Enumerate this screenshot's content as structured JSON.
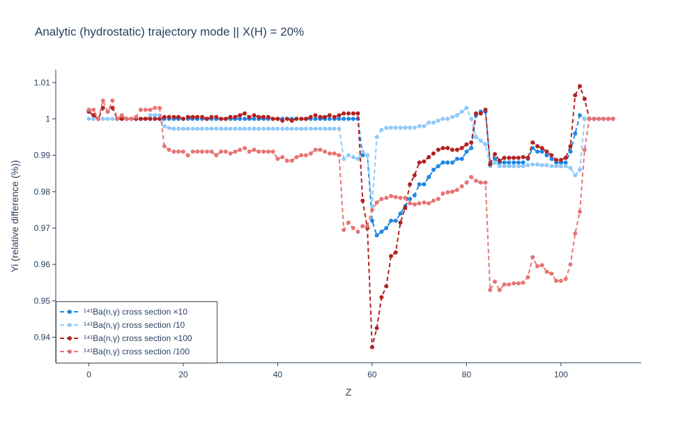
{
  "chart_data": {
    "type": "line",
    "title": "Analytic (hydrostatic) trajectory mode || X(H) = 20%",
    "xlabel": "Z",
    "ylabel": "Yi (relative difference (%))",
    "xlim": [
      -7,
      117
    ],
    "ylim": [
      0.933,
      1.0135
    ],
    "x_ticks": [
      0,
      20,
      40,
      60,
      80,
      100
    ],
    "y_ticks": [
      0.94,
      0.95,
      0.96,
      0.97,
      0.98,
      0.99,
      1,
      1.01
    ],
    "y_tick_labels": [
      "0.94",
      "0.95",
      "0.96",
      "0.97",
      "0.98",
      "0.99",
      "1",
      "1.01"
    ],
    "grid": false,
    "legend_position": "bottom-left",
    "x": [
      0,
      1,
      2,
      3,
      4,
      5,
      6,
      7,
      8,
      9,
      10,
      11,
      12,
      13,
      14,
      15,
      16,
      17,
      18,
      19,
      20,
      21,
      22,
      23,
      24,
      25,
      26,
      27,
      28,
      29,
      30,
      31,
      32,
      33,
      34,
      35,
      36,
      37,
      38,
      39,
      40,
      41,
      42,
      43,
      44,
      45,
      46,
      47,
      48,
      49,
      50,
      51,
      52,
      53,
      54,
      55,
      56,
      57,
      58,
      59,
      60,
      61,
      62,
      63,
      64,
      65,
      66,
      67,
      68,
      69,
      70,
      71,
      72,
      73,
      74,
      75,
      76,
      77,
      78,
      79,
      80,
      81,
      82,
      83,
      84,
      85,
      86,
      87,
      88,
      89,
      90,
      91,
      92,
      93,
      94,
      95,
      96,
      97,
      98,
      99,
      100,
      101,
      102,
      103,
      104,
      105,
      106,
      107,
      108,
      109,
      110,
      111
    ],
    "series": [
      {
        "name": "¹⁴¹Ba(n,γ) cross section ×10",
        "color": "#1e88e5",
        "values": [
          1.002,
          1.001,
          1.0,
          1.003,
          1.002,
          1.003,
          1.0,
          1.0,
          1.0,
          1.0,
          1.0,
          1.0,
          1.0,
          1.0,
          1.0,
          1.0,
          1.0,
          1.0,
          1.0,
          1.0,
          1.0,
          1.0,
          1.0,
          1.0,
          1.0,
          1.0,
          1.0,
          1.0,
          1.0,
          1.0,
          1.0,
          1.0,
          1.0,
          1.0,
          1.0,
          1.0,
          1.0,
          1.0,
          1.0,
          1.0,
          1.0,
          1.0,
          1.0,
          1.0,
          1.0,
          1.0,
          1.0,
          1.0,
          1.0,
          1.0,
          1.0,
          1.0,
          1.0,
          1.0,
          1.0,
          1.0,
          1.0,
          1.0,
          0.99,
          0.99,
          0.972,
          0.968,
          0.969,
          0.97,
          0.972,
          0.972,
          0.974,
          0.976,
          0.978,
          0.979,
          0.982,
          0.982,
          0.984,
          0.986,
          0.987,
          0.988,
          0.988,
          0.988,
          0.989,
          0.989,
          0.991,
          0.992,
          1.001,
          1.002,
          1.002,
          0.988,
          0.989,
          0.988,
          0.988,
          0.988,
          0.988,
          0.988,
          0.988,
          0.989,
          0.992,
          0.991,
          0.991,
          0.99,
          0.989,
          0.988,
          0.988,
          0.988,
          0.991,
          0.996,
          1.001,
          1.0,
          1.0,
          1.0,
          1.0,
          1.0,
          1.0,
          1.0
        ]
      },
      {
        "name": "¹⁴¹Ba(n,γ) cross section /10",
        "color": "#90caf9",
        "values": [
          1.0,
          1.0,
          1.0,
          1.0,
          1.0,
          1.0,
          1.0,
          1.0,
          1.0,
          1.0,
          1.0,
          1.0,
          1.0,
          1.001,
          1.001,
          1.001,
          0.998,
          0.9975,
          0.9973,
          0.9973,
          0.9973,
          0.9973,
          0.9973,
          0.9973,
          0.9973,
          0.9973,
          0.9973,
          0.9973,
          0.9973,
          0.9973,
          0.9973,
          0.9973,
          0.9973,
          0.9973,
          0.9973,
          0.9973,
          0.9973,
          0.9973,
          0.9973,
          0.9973,
          0.9973,
          0.9973,
          0.9973,
          0.9973,
          0.9973,
          0.9973,
          0.9973,
          0.9973,
          0.9973,
          0.9973,
          0.9973,
          0.9973,
          0.9973,
          0.9973,
          0.989,
          0.99,
          0.9895,
          0.989,
          0.991,
          0.99,
          0.976,
          0.995,
          0.997,
          0.9975,
          0.9976,
          0.9976,
          0.9976,
          0.9976,
          0.9976,
          0.9976,
          0.998,
          0.998,
          0.999,
          0.999,
          0.9995,
          1.0,
          1.0,
          1.0005,
          1.001,
          1.002,
          1.003,
          1.0,
          0.995,
          0.994,
          0.993,
          0.987,
          0.988,
          0.987,
          0.987,
          0.987,
          0.987,
          0.987,
          0.987,
          0.9873,
          0.9875,
          0.9875,
          0.9873,
          0.9873,
          0.987,
          0.987,
          0.987,
          0.987,
          0.9865,
          0.9845,
          0.986,
          1.0,
          1.0,
          1.0,
          1.0,
          1.0,
          1.0,
          1.0
        ]
      },
      {
        "name": "¹⁴¹Ba(n,γ) cross section ×100",
        "color": "#b22222",
        "values": [
          1.002,
          1.001,
          1.0,
          1.003,
          1.002,
          1.003,
          1.0,
          1.0,
          1.0,
          1.0,
          1.0,
          1.0,
          1.0,
          1.0,
          1.0,
          1.0,
          1.0005,
          1.0005,
          1.0005,
          1.0005,
          1.0,
          1.0005,
          1.0005,
          1.0005,
          1.0005,
          1.0,
          1.0005,
          1.0005,
          1.0,
          1.0,
          1.0005,
          1.0005,
          1.001,
          1.0015,
          1.0005,
          1.001,
          1.0005,
          1.0005,
          1.0005,
          1.0,
          1.0,
          0.9995,
          1.0,
          0.9995,
          1.0,
          1.0,
          1.0,
          1.0005,
          1.001,
          1.0005,
          1.0005,
          1.001,
          1.0005,
          1.001,
          1.0015,
          1.0015,
          1.0015,
          1.0015,
          0.9775,
          0.97,
          0.9373,
          0.9425,
          0.951,
          0.954,
          0.9623,
          0.9633,
          0.9715,
          0.9755,
          0.982,
          0.9845,
          0.988,
          0.9883,
          0.9895,
          0.9905,
          0.9915,
          0.992,
          0.992,
          0.9915,
          0.9915,
          0.992,
          0.993,
          0.9935,
          1.0015,
          1.0015,
          1.0025,
          0.9875,
          0.9903,
          0.9885,
          0.9893,
          0.9893,
          0.9893,
          0.9893,
          0.9895,
          0.9893,
          0.9935,
          0.9925,
          0.992,
          0.991,
          0.99,
          0.9887,
          0.9887,
          0.9893,
          0.9925,
          1.0065,
          1.009,
          1.0055,
          1.0,
          1.0,
          1.0,
          1.0,
          1.0,
          1.0
        ]
      },
      {
        "name": "¹⁴¹Ba(n,γ) cross section /100",
        "color": "#e87474",
        "values": [
          1.0025,
          1.0025,
          1.0,
          1.005,
          1.002,
          1.005,
          1.0,
          1.001,
          1.0,
          1.0,
          1.0005,
          1.0025,
          1.0025,
          1.0025,
          1.003,
          1.003,
          0.9925,
          0.9915,
          0.991,
          0.991,
          0.991,
          0.99,
          0.991,
          0.991,
          0.991,
          0.991,
          0.991,
          0.99,
          0.991,
          0.991,
          0.9905,
          0.991,
          0.9915,
          0.992,
          0.991,
          0.9915,
          0.991,
          0.991,
          0.991,
          0.991,
          0.989,
          0.9895,
          0.9885,
          0.9885,
          0.9895,
          0.99,
          0.99,
          0.9905,
          0.9915,
          0.9915,
          0.991,
          0.9905,
          0.9905,
          0.99,
          0.9695,
          0.9715,
          0.97,
          0.969,
          0.9705,
          0.9705,
          0.975,
          0.977,
          0.978,
          0.9783,
          0.9788,
          0.9785,
          0.9783,
          0.9783,
          0.9768,
          0.9765,
          0.9768,
          0.977,
          0.9768,
          0.9775,
          0.978,
          0.9795,
          0.9798,
          0.98,
          0.9805,
          0.9815,
          0.9825,
          0.984,
          0.983,
          0.9825,
          0.9825,
          0.953,
          0.9553,
          0.953,
          0.9545,
          0.9545,
          0.9548,
          0.9548,
          0.955,
          0.9565,
          0.962,
          0.9595,
          0.9598,
          0.958,
          0.9575,
          0.9555,
          0.9555,
          0.956,
          0.96,
          0.9685,
          0.9745,
          0.9915,
          1.0,
          1.0,
          1.0,
          1.0,
          1.0,
          1.0
        ]
      }
    ]
  }
}
